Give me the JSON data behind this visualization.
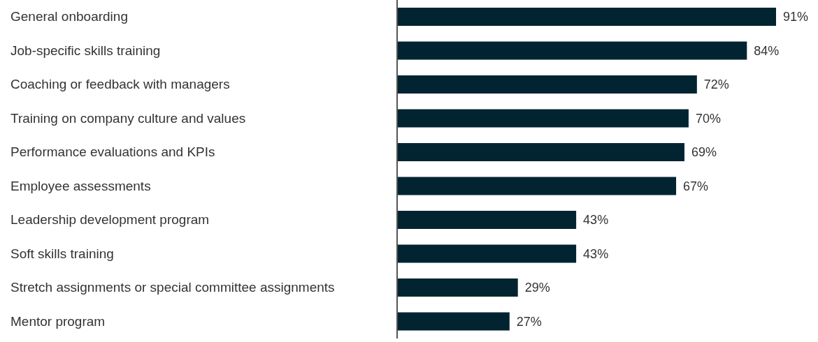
{
  "chart_data": {
    "type": "bar",
    "orientation": "horizontal",
    "categories": [
      "General onboarding",
      "Job-specific skills training",
      "Coaching or feedback with managers",
      "Training on company culture and values",
      "Performance evaluations and KPIs",
      "Employee assessments",
      "Leadership development program",
      "Soft skills training",
      "Stretch assignments or special committee assignments",
      "Mentor program"
    ],
    "values": [
      91,
      84,
      72,
      70,
      69,
      67,
      43,
      43,
      29,
      27
    ],
    "value_labels": [
      "91%",
      "84%",
      "72%",
      "70%",
      "69%",
      "67%",
      "43%",
      "43%",
      "29%",
      "27%"
    ],
    "color": "#022431"
  }
}
